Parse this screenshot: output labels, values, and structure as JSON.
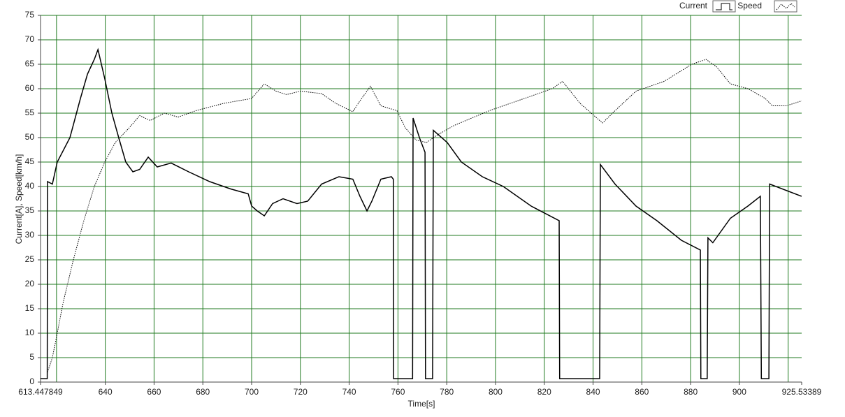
{
  "chart_data": {
    "type": "line",
    "xlabel": "Time[s]",
    "ylabel": "Current[A], Speed[km/h]",
    "xlim": [
      613.447849,
      925.53389
    ],
    "ylim": [
      0,
      75
    ],
    "xticks": [
      613.447849,
      640,
      660,
      680,
      700,
      720,
      740,
      760,
      780,
      800,
      820,
      840,
      860,
      880,
      900,
      925.53389
    ],
    "xgrid": [
      620,
      640,
      660,
      680,
      700,
      720,
      740,
      760,
      780,
      800,
      820,
      840,
      860,
      880,
      900,
      920
    ],
    "yticks": [
      0,
      5,
      10,
      15,
      20,
      25,
      30,
      35,
      40,
      45,
      50,
      55,
      60,
      65,
      70,
      75
    ],
    "grid": true,
    "grid_color": "#1f7a1f",
    "legend": "top-right",
    "series": [
      {
        "name": "Current",
        "color": "#000000",
        "style": "solid",
        "x": [
          613.4,
          616.2,
          616.3,
          618.3,
          620.3,
          625.5,
          629.8,
          632.7,
          635.5,
          637.0,
          639.8,
          642.7,
          645.5,
          648.4,
          651.3,
          654.1,
          657.6,
          661.3,
          667.0,
          674.2,
          682.8,
          691.4,
          698.6,
          700.0,
          702.3,
          705.2,
          708.6,
          712.9,
          718.6,
          723.0,
          728.7,
          735.8,
          741.5,
          744.4,
          747.3,
          749.3,
          753.0,
          757.3,
          758.1,
          758.2,
          766.0,
          766.2,
          768.8,
          771.1,
          771.3,
          774.2,
          774.5,
          780.2,
          786.0,
          794.6,
          803.2,
          814.6,
          826.1,
          826.3,
          842.7,
          843.0,
          849.0,
          857.6,
          866.2,
          876.2,
          884.0,
          884.2,
          886.8,
          887.1,
          889.1,
          896.3,
          903.5,
          908.6,
          909.0,
          912.1,
          912.4,
          925.5
        ],
        "values": [
          0.7,
          0.7,
          41,
          40.5,
          45,
          50,
          58,
          63,
          66,
          68,
          62,
          55,
          50,
          45,
          43,
          43.5,
          46,
          44,
          44.8,
          43,
          41,
          39.5,
          38.5,
          36,
          35,
          34,
          36.5,
          37.5,
          36.5,
          37,
          40.5,
          42,
          41.5,
          38,
          35,
          37,
          41.5,
          42,
          41.5,
          0.7,
          0.7,
          54,
          50,
          47,
          0.7,
          0.7,
          51.5,
          49,
          45,
          42,
          40,
          36,
          33,
          0.7,
          0.7,
          44.5,
          40.5,
          36,
          33,
          29,
          27,
          0.7,
          0.7,
          29.5,
          28.5,
          33.5,
          36,
          38,
          0.7,
          0.7,
          40.5,
          38
        ]
      },
      {
        "name": "Speed",
        "color": "#000000",
        "style": "dotted",
        "x": [
          616.3,
          618.3,
          620.3,
          622.6,
          626.9,
          631.2,
          635.5,
          639.8,
          644.1,
          649.8,
          654.1,
          658.4,
          664.2,
          669.9,
          677.1,
          688.5,
          700.0,
          705.2,
          710.0,
          714.3,
          720.0,
          728.7,
          734.5,
          741.5,
          744.4,
          748.7,
          753.0,
          759.6,
          763.0,
          767.4,
          771.7,
          776.0,
          783.1,
          797.4,
          811.8,
          823.2,
          827.5,
          834.7,
          840.4,
          843.9,
          849.0,
          857.6,
          869.1,
          880.5,
          886.3,
          890.6,
          896.3,
          903.5,
          910.6,
          913.5,
          919.2,
          925.5
        ],
        "values": [
          2,
          5,
          10,
          16,
          25,
          33,
          40,
          45,
          49,
          52,
          54.5,
          53.5,
          55,
          54.2,
          55.5,
          57,
          58,
          61,
          59.5,
          58.8,
          59.5,
          59,
          57,
          55.3,
          57.5,
          60.5,
          56.5,
          55.5,
          52,
          49.5,
          49,
          50.5,
          52.5,
          55.5,
          58,
          60,
          61.5,
          57,
          54.5,
          53,
          55.5,
          59.5,
          61.5,
          65,
          66,
          64.5,
          61,
          60,
          58,
          56.5,
          56.5,
          57.5
        ]
      }
    ]
  }
}
